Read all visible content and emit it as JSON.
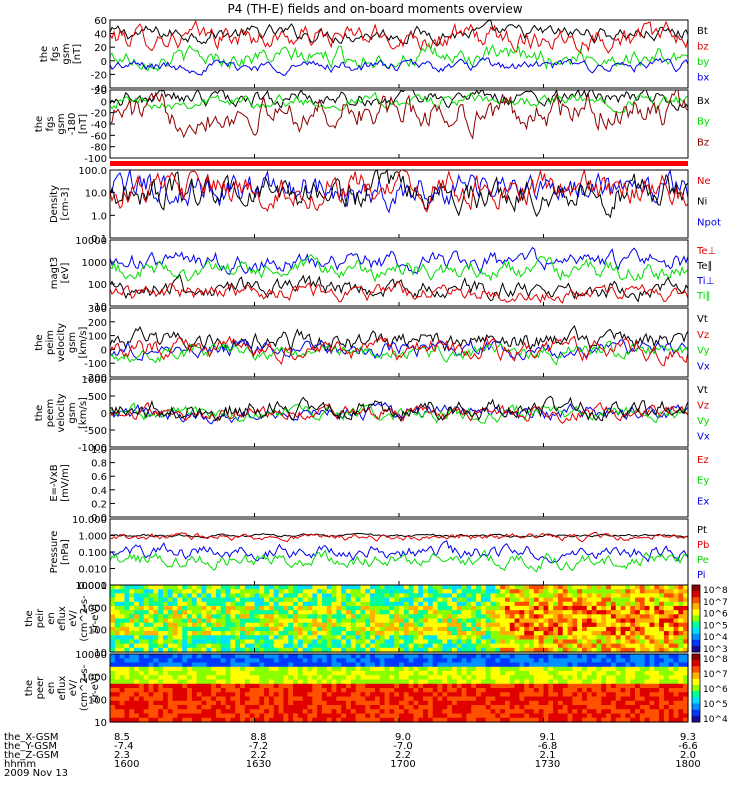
{
  "title": "P4 (TH-E) fields and on-board moments overview",
  "colors": {
    "black": "#000000",
    "red": "#e00000",
    "green": "#00dd00",
    "blue": "#0000ee",
    "darkred": "#8b0000",
    "bar": "#ff0000"
  },
  "chart_data": [
    {
      "type": "line",
      "ylabel": [
        "the",
        "fgs",
        "gsm",
        "[nT]"
      ],
      "yticks": [
        "60",
        "40",
        "20",
        "0",
        "-20",
        "-40"
      ],
      "ylim": [
        -40,
        60
      ],
      "legend": [
        {
          "name": "Bt",
          "color": "#000000"
        },
        {
          "name": "bz",
          "color": "#e00000"
        },
        {
          "name": "by",
          "color": "#00dd00"
        },
        {
          "name": "bx",
          "color": "#0000ee"
        }
      ],
      "series": [
        {
          "name": "Bt",
          "color": "#000000",
          "base": 40,
          "noise": 8
        },
        {
          "name": "bz",
          "color": "#e00000",
          "base": 35,
          "noise": 12
        },
        {
          "name": "by",
          "color": "#00dd00",
          "base": 5,
          "noise": 10
        },
        {
          "name": "bx",
          "color": "#0000ee",
          "base": -8,
          "noise": 6
        }
      ]
    },
    {
      "type": "line",
      "ylabel": [
        "the",
        "fgs",
        "gsm",
        "-180",
        "[nT]"
      ],
      "yticks": [
        "20",
        "0",
        "-20",
        "-40",
        "-60",
        "-80",
        "-100"
      ],
      "ylim": [
        -100,
        20
      ],
      "legend": [
        {
          "name": "Bx",
          "color": "#000000"
        },
        {
          "name": "By",
          "color": "#00dd00"
        },
        {
          "name": "Bz",
          "color": "#8b0000"
        }
      ],
      "series": [
        {
          "name": "Bx",
          "color": "#000000",
          "base": 5,
          "noise": 10
        },
        {
          "name": "By",
          "color": "#00dd00",
          "base": 0,
          "noise": 8
        },
        {
          "name": "Bz",
          "color": "#8b0000",
          "base": -20,
          "noise": 20
        }
      ]
    },
    {
      "type": "line",
      "ylabel": [
        "Density",
        "[cm-3]"
      ],
      "yticks": [
        "100.0",
        "10.0",
        "1.0",
        "0.1"
      ],
      "ylim": [
        0.1,
        100
      ],
      "log": true,
      "legend": [
        {
          "name": "Ne",
          "color": "#e00000"
        },
        {
          "name": "Ni",
          "color": "#000000"
        },
        {
          "name": "Npot",
          "color": "#0000ee"
        }
      ],
      "series": [
        {
          "name": "Npot",
          "color": "#0000ee",
          "base": 1.2,
          "noise": 0.5
        },
        {
          "name": "Ni",
          "color": "#000000",
          "base": 1.0,
          "noise": 0.5
        },
        {
          "name": "Ne",
          "color": "#e00000",
          "base": 1.1,
          "noise": 0.5
        }
      ]
    },
    {
      "type": "line",
      "ylabel": [
        "magt3",
        "[eV]"
      ],
      "yticks": [
        "10000",
        "1000",
        "100",
        "10"
      ],
      "ylim": [
        10,
        10000
      ],
      "log": true,
      "legend": [
        {
          "name": "Te⊥",
          "color": "#e00000"
        },
        {
          "name": "Te∥",
          "color": "#000000"
        },
        {
          "name": "Ti⊥",
          "color": "#0000ee"
        },
        {
          "name": "Ti∥",
          "color": "#00dd00"
        }
      ],
      "series": [
        {
          "name": "Ti⊥",
          "color": "#0000ee",
          "base": 3.0,
          "noise": 0.3
        },
        {
          "name": "Ti∥",
          "color": "#00dd00",
          "base": 2.6,
          "noise": 0.3
        },
        {
          "name": "Te∥",
          "color": "#000000",
          "base": 1.8,
          "noise": 0.3
        },
        {
          "name": "Te⊥",
          "color": "#e00000",
          "base": 1.6,
          "noise": 0.25
        }
      ]
    },
    {
      "type": "line",
      "ylabel": [
        "the",
        "peim",
        "velocity",
        "gsm",
        "[km/s]"
      ],
      "yticks": [
        "300",
        "200",
        "100",
        "0",
        "-100",
        "-200"
      ],
      "ylim": [
        -200,
        300
      ],
      "legend": [
        {
          "name": "Vt",
          "color": "#000000"
        },
        {
          "name": "Vz",
          "color": "#e00000"
        },
        {
          "name": "Vy",
          "color": "#00dd00"
        },
        {
          "name": "Vx",
          "color": "#0000ee"
        }
      ],
      "series": [
        {
          "name": "Vt",
          "color": "#000000",
          "base": 60,
          "noise": 50
        },
        {
          "name": "Vx",
          "color": "#0000ee",
          "base": 0,
          "noise": 40
        },
        {
          "name": "Vy",
          "color": "#00dd00",
          "base": -20,
          "noise": 40
        },
        {
          "name": "Vz",
          "color": "#e00000",
          "base": 0,
          "noise": 50
        }
      ]
    },
    {
      "type": "line",
      "ylabel": [
        "the",
        "peem",
        "velocity",
        "gsm",
        "[km/s]"
      ],
      "yticks": [
        "1000",
        "500",
        "0",
        "-500",
        "-1000"
      ],
      "ylim": [
        -1000,
        1000
      ],
      "legend": [
        {
          "name": "Vt",
          "color": "#000000"
        },
        {
          "name": "Vz",
          "color": "#e00000"
        },
        {
          "name": "Vy",
          "color": "#00dd00"
        },
        {
          "name": "Vx",
          "color": "#0000ee"
        }
      ],
      "series": [
        {
          "name": "Vx",
          "color": "#0000ee",
          "base": 0,
          "noise": 150
        },
        {
          "name": "Vy",
          "color": "#00dd00",
          "base": 0,
          "noise": 150
        },
        {
          "name": "Vz",
          "color": "#e00000",
          "base": 0,
          "noise": 150
        },
        {
          "name": "Vt",
          "color": "#000000",
          "base": 100,
          "noise": 200
        }
      ]
    },
    {
      "type": "line",
      "ylabel": [
        "E=-VxB",
        "[mV/m]"
      ],
      "yticks": [
        "1.0",
        "0.8",
        "0.6",
        "0.4",
        "0.2",
        "0.0"
      ],
      "ylim": [
        0,
        1
      ],
      "legend": [
        {
          "name": "Ez",
          "color": "#e00000"
        },
        {
          "name": "Ey",
          "color": "#00dd00"
        },
        {
          "name": "Ex",
          "color": "#0000ee"
        }
      ],
      "series": []
    },
    {
      "type": "line",
      "ylabel": [
        "Pressure",
        "[nPa]"
      ],
      "yticks": [
        "10.000",
        "1.000",
        "0.100",
        "0.010",
        "0.001"
      ],
      "ylim": [
        0.001,
        10
      ],
      "log": true,
      "legend": [
        {
          "name": "Pt",
          "color": "#000000"
        },
        {
          "name": "Pb",
          "color": "#e00000"
        },
        {
          "name": "Pe",
          "color": "#00dd00"
        },
        {
          "name": "Pi",
          "color": "#0000ee"
        }
      ],
      "series": [
        {
          "name": "Pt",
          "color": "#000000",
          "base": 0,
          "noise": 0.06
        },
        {
          "name": "Pb",
          "color": "#e00000",
          "base": -0.1,
          "noise": 0.15
        },
        {
          "name": "Pi",
          "color": "#0000ee",
          "base": -1.0,
          "noise": 0.3
        },
        {
          "name": "Pe",
          "color": "#00dd00",
          "base": -1.5,
          "noise": 0.3
        }
      ]
    },
    {
      "type": "heatmap",
      "ylabel": [
        "the",
        "peir",
        "en",
        "eflux",
        "eV/",
        "(cm^2-s-",
        "sr-eV)"
      ],
      "yticks": [
        "10000",
        "1000",
        "100",
        "10"
      ],
      "ylim": [
        10,
        10000
      ],
      "log": true,
      "colorbar": [
        "10^8",
        "10^7",
        "10^6",
        "10^5",
        "10^4",
        "10^3"
      ]
    },
    {
      "type": "heatmap",
      "ylabel": [
        "the",
        "peer",
        "en",
        "eflux",
        "eV/",
        "(cm^2-s-",
        "sr-eV)"
      ],
      "yticks": [
        "10000",
        "1000",
        "100",
        "10"
      ],
      "ylim": [
        10,
        10000
      ],
      "log": true,
      "colorbar": [
        "10^8",
        "10^7",
        "10^6",
        "10^5",
        "10^4"
      ]
    }
  ],
  "xaxis": {
    "row_labels": [
      "the_X-GSM",
      "the_Y-GSM",
      "the_Z-GSM",
      "hhmm",
      "2009 Nov 13"
    ],
    "ticks": [
      {
        "vals": [
          "8.5",
          "-7.4",
          "2.3",
          "1600"
        ]
      },
      {
        "vals": [
          "8.8",
          "-7.2",
          "2.2",
          "1630"
        ]
      },
      {
        "vals": [
          "9.0",
          "-7.0",
          "2.2",
          "1700"
        ]
      },
      {
        "vals": [
          "9.1",
          "-6.8",
          "2.1",
          "1730"
        ]
      },
      {
        "vals": [
          "9.3",
          "-6.6",
          "2.0",
          "1800"
        ]
      }
    ]
  }
}
